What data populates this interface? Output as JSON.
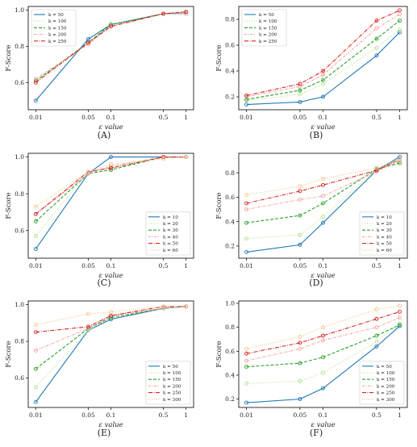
{
  "chart_data": [
    {
      "type": "line",
      "panel": "(A)",
      "xlabel": "ε value",
      "ylabel": "F-Score",
      "x": [
        0.01,
        0.05,
        0.1,
        0.5,
        1
      ],
      "x_tick_labels": [
        "0.01",
        "0.05",
        "0.1",
        "0.5",
        "1"
      ],
      "ylim": [
        0.45,
        1.02
      ],
      "yticks": [
        0.6,
        0.8,
        1.0
      ],
      "legend": "top-left",
      "series": [
        {
          "name": "k = 50",
          "values": [
            0.5,
            0.84,
            0.92,
            0.98,
            0.98
          ],
          "color": "#1f77b4",
          "dash": ""
        },
        {
          "name": "k = 100",
          "values": [
            0.6,
            0.82,
            0.91,
            0.98,
            0.99
          ],
          "color": "#b5e08a",
          "dash": "1,2"
        },
        {
          "name": "k = 150",
          "values": [
            0.61,
            0.82,
            0.92,
            0.98,
            0.99
          ],
          "color": "#2ca02c",
          "dash": "4,2"
        },
        {
          "name": "k = 200",
          "values": [
            0.62,
            0.81,
            0.91,
            0.98,
            0.98
          ],
          "color": "#f4a3a3",
          "dash": "3,1.5,1,1.5"
        },
        {
          "name": "k = 250",
          "values": [
            0.6,
            0.82,
            0.91,
            0.98,
            0.99
          ],
          "color": "#d62728",
          "dash": "5,1.5,1,1.5"
        }
      ]
    },
    {
      "type": "line",
      "panel": "(B)",
      "xlabel": "ε value",
      "ylabel": "F-Score",
      "x": [
        0.01,
        0.05,
        0.1,
        0.5,
        1
      ],
      "x_tick_labels": [
        "0.01",
        "0.05",
        "0.1",
        "0.5",
        "1"
      ],
      "ylim": [
        0.1,
        0.9
      ],
      "yticks": [
        0.2,
        0.4,
        0.6,
        0.8
      ],
      "legend": "top-left",
      "series": [
        {
          "name": "k = 50",
          "values": [
            0.14,
            0.16,
            0.2,
            0.52,
            0.7
          ],
          "color": "#1f77b4",
          "dash": ""
        },
        {
          "name": "k = 100",
          "values": [
            0.17,
            0.22,
            0.3,
            0.58,
            0.72
          ],
          "color": "#b5e08a",
          "dash": "1,2"
        },
        {
          "name": "k = 150",
          "values": [
            0.18,
            0.25,
            0.33,
            0.65,
            0.79
          ],
          "color": "#2ca02c",
          "dash": "4,2"
        },
        {
          "name": "k = 200",
          "values": [
            0.2,
            0.28,
            0.37,
            0.73,
            0.84
          ],
          "color": "#f4a3a3",
          "dash": "3,1.5,1,1.5"
        },
        {
          "name": "k = 250",
          "values": [
            0.21,
            0.3,
            0.4,
            0.79,
            0.87
          ],
          "color": "#d62728",
          "dash": "5,1.5,1,1.5"
        }
      ]
    },
    {
      "type": "line",
      "panel": "(C)",
      "xlabel": "ε value",
      "ylabel": "F-Score",
      "x": [
        0.01,
        0.05,
        0.1,
        0.5,
        1
      ],
      "x_tick_labels": [
        "0.01",
        "0.05",
        "0.1",
        "0.5",
        "1"
      ],
      "ylim": [
        0.45,
        1.02
      ],
      "yticks": [
        0.6,
        0.8,
        1.0
      ],
      "legend": "bottom-right",
      "series": [
        {
          "name": "k = 10",
          "values": [
            0.5,
            0.91,
            1.0,
            1.0,
            1.0
          ],
          "color": "#1f77b4",
          "dash": ""
        },
        {
          "name": "k = 20",
          "values": [
            0.57,
            0.92,
            0.94,
            1.0,
            1.0
          ],
          "color": "#b5e08a",
          "dash": "1,2"
        },
        {
          "name": "k = 30",
          "values": [
            0.65,
            0.91,
            0.93,
            1.0,
            1.0
          ],
          "color": "#2ca02c",
          "dash": "4,2"
        },
        {
          "name": "k = 40",
          "values": [
            0.69,
            0.91,
            0.95,
            1.0,
            1.0
          ],
          "color": "#f4a3a3",
          "dash": "3,1.5,1,1.5"
        },
        {
          "name": "k = 50",
          "values": [
            0.69,
            0.92,
            0.94,
            1.0,
            1.0
          ],
          "color": "#d62728",
          "dash": "5,1.5,1,1.5"
        },
        {
          "name": "k = 60",
          "values": [
            0.73,
            0.92,
            0.96,
            0.99,
            1.0
          ],
          "color": "#f5c58a",
          "dash": "1,1.5"
        }
      ]
    },
    {
      "type": "line",
      "panel": "(D)",
      "xlabel": "ε value",
      "ylabel": "F-Score",
      "x": [
        0.01,
        0.05,
        0.1,
        0.5,
        1
      ],
      "x_tick_labels": [
        "0.01",
        "0.05",
        "0.1",
        "0.5",
        "1"
      ],
      "ylim": [
        0.1,
        0.96
      ],
      "yticks": [
        0.2,
        0.4,
        0.6,
        0.8
      ],
      "legend": "bottom-right",
      "series": [
        {
          "name": "k = 10",
          "values": [
            0.15,
            0.21,
            0.39,
            0.82,
            0.93
          ],
          "color": "#1f77b4",
          "dash": ""
        },
        {
          "name": "k = 20",
          "values": [
            0.26,
            0.29,
            0.44,
            0.83,
            0.91
          ],
          "color": "#b5e08a",
          "dash": "1,2"
        },
        {
          "name": "k = 30",
          "values": [
            0.39,
            0.45,
            0.55,
            0.83,
            0.88
          ],
          "color": "#2ca02c",
          "dash": "4,2"
        },
        {
          "name": "k = 40",
          "values": [
            0.5,
            0.58,
            0.61,
            0.81,
            0.9
          ],
          "color": "#f4a3a3",
          "dash": "3,1.5,1,1.5"
        },
        {
          "name": "k = 50",
          "values": [
            0.55,
            0.65,
            0.7,
            0.82,
            0.91
          ],
          "color": "#d62728",
          "dash": "5,1.5,1,1.5"
        },
        {
          "name": "k = 60",
          "values": [
            0.62,
            0.69,
            0.75,
            0.84,
            0.91
          ],
          "color": "#f5c58a",
          "dash": "1,1.5"
        }
      ]
    },
    {
      "type": "line",
      "panel": "(E)",
      "xlabel": "ε value",
      "ylabel": "F-Score",
      "x": [
        0.01,
        0.05,
        0.1,
        0.5,
        1
      ],
      "x_tick_labels": [
        "0.01",
        "0.05",
        "0.1",
        "0.5",
        "1"
      ],
      "ylim": [
        0.44,
        1.02
      ],
      "yticks": [
        0.6,
        0.8,
        1.0
      ],
      "legend": "bottom-right",
      "series": [
        {
          "name": "k = 50",
          "values": [
            0.47,
            0.86,
            0.92,
            0.98,
            0.99
          ],
          "color": "#1f77b4",
          "dash": ""
        },
        {
          "name": "k = 100",
          "values": [
            0.55,
            0.86,
            0.93,
            0.98,
            0.99
          ],
          "color": "#b5e08a",
          "dash": "1,2"
        },
        {
          "name": "k = 150",
          "values": [
            0.65,
            0.87,
            0.93,
            0.98,
            0.99
          ],
          "color": "#2ca02c",
          "dash": "4,2"
        },
        {
          "name": "k = 200",
          "values": [
            0.75,
            0.87,
            0.94,
            0.98,
            0.99
          ],
          "color": "#f4a3a3",
          "dash": "3,1.5,1,1.5"
        },
        {
          "name": "k = 250",
          "values": [
            0.85,
            0.88,
            0.94,
            0.99,
            0.99
          ],
          "color": "#d62728",
          "dash": "5,1.5,1,1.5"
        },
        {
          "name": "k = 300",
          "values": [
            0.89,
            0.95,
            0.96,
            0.99,
            0.99
          ],
          "color": "#f5c58a",
          "dash": "1,1.5"
        }
      ]
    },
    {
      "type": "line",
      "panel": "(F)",
      "xlabel": "ε value",
      "ylabel": "F-Score",
      "x": [
        0.01,
        0.05,
        0.1,
        0.5,
        1
      ],
      "x_tick_labels": [
        "0.01",
        "0.05",
        "0.1",
        "0.5",
        "1"
      ],
      "ylim": [
        0.13,
        1.02
      ],
      "yticks": [
        0.2,
        0.4,
        0.6,
        0.8,
        1.0
      ],
      "legend": "bottom-right",
      "series": [
        {
          "name": "k = 50",
          "values": [
            0.17,
            0.2,
            0.29,
            0.64,
            0.81
          ],
          "color": "#1f77b4",
          "dash": ""
        },
        {
          "name": "k = 100",
          "values": [
            0.33,
            0.35,
            0.42,
            0.68,
            0.83
          ],
          "color": "#b5e08a",
          "dash": "1,2"
        },
        {
          "name": "k = 150",
          "values": [
            0.47,
            0.5,
            0.55,
            0.73,
            0.82
          ],
          "color": "#2ca02c",
          "dash": "4,2"
        },
        {
          "name": "k = 200",
          "values": [
            0.52,
            0.62,
            0.69,
            0.8,
            0.88
          ],
          "color": "#f4a3a3",
          "dash": "3,1.5,1,1.5"
        },
        {
          "name": "k = 250",
          "values": [
            0.58,
            0.67,
            0.73,
            0.87,
            0.93
          ],
          "color": "#d62728",
          "dash": "5,1.5,1,1.5"
        },
        {
          "name": "k = 300",
          "values": [
            0.62,
            0.72,
            0.8,
            0.95,
            0.98
          ],
          "color": "#f5c58a",
          "dash": "1,1.5"
        }
      ]
    }
  ]
}
